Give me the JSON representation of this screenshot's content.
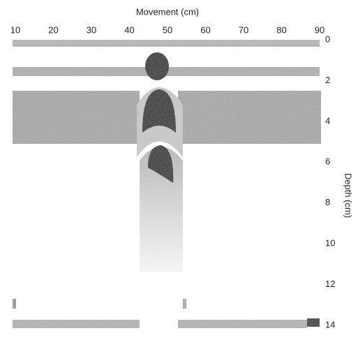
{
  "chart_data": {
    "type": "image",
    "x_label": "Movement (cm)",
    "y_label": "Depth (cm)",
    "xlim": [
      10,
      90
    ],
    "xticks": [
      10,
      20,
      30,
      40,
      50,
      60,
      70,
      80,
      90
    ],
    "ylim": [
      0,
      14
    ],
    "yticks": [
      0,
      2,
      4,
      6,
      8,
      10,
      12,
      14
    ]
  }
}
